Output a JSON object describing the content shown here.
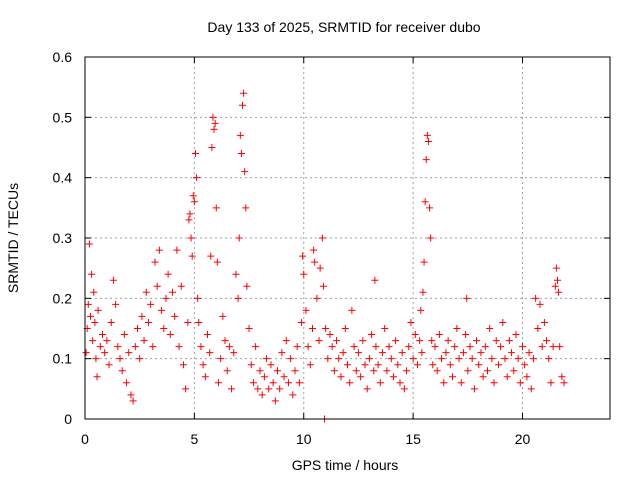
{
  "chart_data": {
    "type": "scatter",
    "title": "Day 133 of 2025, SRMTID for receiver dubo",
    "xlabel": "GPS time / hours",
    "ylabel": "SRMTID / TECUs",
    "xlim": [
      0,
      24
    ],
    "ylim": [
      0,
      0.6
    ],
    "xticks": [
      0,
      5,
      10,
      15,
      20
    ],
    "yticks": [
      0,
      0.1,
      0.2,
      0.3,
      0.4,
      0.5,
      0.6
    ],
    "xtick_labels": [
      "0",
      "5",
      "10",
      "15",
      "20"
    ],
    "ytick_labels": [
      "0",
      "0.1",
      "0.2",
      "0.3",
      "0.4",
      "0.5",
      "0.6"
    ],
    "grid": true,
    "marker": "+",
    "series": [
      {
        "name": "SRMTID",
        "color": "#ff0000",
        "points": [
          [
            0.05,
            0.11
          ],
          [
            0.1,
            0.15
          ],
          [
            0.15,
            0.19
          ],
          [
            0.2,
            0.29
          ],
          [
            0.25,
            0.17
          ],
          [
            0.3,
            0.24
          ],
          [
            0.35,
            0.13
          ],
          [
            0.4,
            0.21
          ],
          [
            0.45,
            0.16
          ],
          [
            0.5,
            0.1
          ],
          [
            0.55,
            0.07
          ],
          [
            0.6,
            0.18
          ],
          [
            0.7,
            0.12
          ],
          [
            0.8,
            0.14
          ],
          [
            0.9,
            0.11
          ],
          [
            1.0,
            0.13
          ],
          [
            1.1,
            0.09
          ],
          [
            1.2,
            0.16
          ],
          [
            1.3,
            0.23
          ],
          [
            1.4,
            0.19
          ],
          [
            1.5,
            0.12
          ],
          [
            1.6,
            0.1
          ],
          [
            1.7,
            0.08
          ],
          [
            1.8,
            0.14
          ],
          [
            1.9,
            0.06
          ],
          [
            2.0,
            0.11
          ],
          [
            2.1,
            0.04
          ],
          [
            2.2,
            0.03
          ],
          [
            2.3,
            0.12
          ],
          [
            2.4,
            0.15
          ],
          [
            2.5,
            0.1
          ],
          [
            2.6,
            0.17
          ],
          [
            2.7,
            0.13
          ],
          [
            2.8,
            0.21
          ],
          [
            2.9,
            0.16
          ],
          [
            3.0,
            0.19
          ],
          [
            3.1,
            0.12
          ],
          [
            3.2,
            0.26
          ],
          [
            3.3,
            0.22
          ],
          [
            3.4,
            0.28
          ],
          [
            3.5,
            0.18
          ],
          [
            3.6,
            0.15
          ],
          [
            3.7,
            0.2
          ],
          [
            3.8,
            0.24
          ],
          [
            3.9,
            0.14
          ],
          [
            4.0,
            0.21
          ],
          [
            4.1,
            0.17
          ],
          [
            4.2,
            0.28
          ],
          [
            4.3,
            0.12
          ],
          [
            4.4,
            0.22
          ],
          [
            4.5,
            0.09
          ],
          [
            4.6,
            0.05
          ],
          [
            4.7,
            0.16
          ],
          [
            4.75,
            0.33
          ],
          [
            4.8,
            0.34
          ],
          [
            4.85,
            0.3
          ],
          [
            4.9,
            0.27
          ],
          [
            4.95,
            0.37
          ],
          [
            5.0,
            0.36
          ],
          [
            5.05,
            0.44
          ],
          [
            5.1,
            0.4
          ],
          [
            5.15,
            0.2
          ],
          [
            5.2,
            0.16
          ],
          [
            5.3,
            0.12
          ],
          [
            5.4,
            0.09
          ],
          [
            5.5,
            0.07
          ],
          [
            5.6,
            0.14
          ],
          [
            5.7,
            0.11
          ],
          [
            5.75,
            0.27
          ],
          [
            5.8,
            0.45
          ],
          [
            5.85,
            0.5
          ],
          [
            5.9,
            0.48
          ],
          [
            5.95,
            0.49
          ],
          [
            6.0,
            0.35
          ],
          [
            6.05,
            0.26
          ],
          [
            6.1,
            0.06
          ],
          [
            6.2,
            0.1
          ],
          [
            6.3,
            0.17
          ],
          [
            6.4,
            0.13
          ],
          [
            6.5,
            0.08
          ],
          [
            6.6,
            0.12
          ],
          [
            6.7,
            0.05
          ],
          [
            6.8,
            0.11
          ],
          [
            6.9,
            0.24
          ],
          [
            7.0,
            0.2
          ],
          [
            7.05,
            0.3
          ],
          [
            7.1,
            0.47
          ],
          [
            7.15,
            0.44
          ],
          [
            7.2,
            0.52
          ],
          [
            7.25,
            0.54
          ],
          [
            7.3,
            0.41
          ],
          [
            7.35,
            0.35
          ],
          [
            7.4,
            0.22
          ],
          [
            7.5,
            0.15
          ],
          [
            7.6,
            0.09
          ],
          [
            7.7,
            0.06
          ],
          [
            7.8,
            0.12
          ],
          [
            7.9,
            0.05
          ],
          [
            8.0,
            0.08
          ],
          [
            8.1,
            0.04
          ],
          [
            8.2,
            0.07
          ],
          [
            8.3,
            0.1
          ],
          [
            8.4,
            0.05
          ],
          [
            8.5,
            0.09
          ],
          [
            8.6,
            0.06
          ],
          [
            8.7,
            0.03
          ],
          [
            8.8,
            0.08
          ],
          [
            8.9,
            0.05
          ],
          [
            9.0,
            0.11
          ],
          [
            9.1,
            0.07
          ],
          [
            9.2,
            0.13
          ],
          [
            9.3,
            0.06
          ],
          [
            9.4,
            0.1
          ],
          [
            9.5,
            0.04
          ],
          [
            9.6,
            0.08
          ],
          [
            9.7,
            0.12
          ],
          [
            9.8,
            0.06
          ],
          [
            9.9,
            0.16
          ],
          [
            9.95,
            0.27
          ],
          [
            10.0,
            0.24
          ],
          [
            10.1,
            0.18
          ],
          [
            10.2,
            0.12
          ],
          [
            10.3,
            0.09
          ],
          [
            10.4,
            0.15
          ],
          [
            10.45,
            0.28
          ],
          [
            10.5,
            0.26
          ],
          [
            10.6,
            0.2
          ],
          [
            10.7,
            0.13
          ],
          [
            10.75,
            0.25
          ],
          [
            10.85,
            0.3
          ],
          [
            10.9,
            0.22
          ],
          [
            10.95,
            0.0
          ],
          [
            11.0,
            0.15
          ],
          [
            11.1,
            0.1
          ],
          [
            11.2,
            0.14
          ],
          [
            11.3,
            0.12
          ],
          [
            11.4,
            0.08
          ],
          [
            11.5,
            0.13
          ],
          [
            11.6,
            0.1
          ],
          [
            11.7,
            0.07
          ],
          [
            11.8,
            0.11
          ],
          [
            11.9,
            0.15
          ],
          [
            12.0,
            0.09
          ],
          [
            12.1,
            0.06
          ],
          [
            12.2,
            0.18
          ],
          [
            12.3,
            0.12
          ],
          [
            12.4,
            0.08
          ],
          [
            12.5,
            0.11
          ],
          [
            12.6,
            0.07
          ],
          [
            12.7,
            0.13
          ],
          [
            12.8,
            0.09
          ],
          [
            12.9,
            0.05
          ],
          [
            13.0,
            0.1
          ],
          [
            13.1,
            0.14
          ],
          [
            13.2,
            0.08
          ],
          [
            13.25,
            0.23
          ],
          [
            13.3,
            0.12
          ],
          [
            13.4,
            0.09
          ],
          [
            13.5,
            0.06
          ],
          [
            13.6,
            0.11
          ],
          [
            13.7,
            0.15
          ],
          [
            13.8,
            0.08
          ],
          [
            13.9,
            0.12
          ],
          [
            14.0,
            0.1
          ],
          [
            14.1,
            0.07
          ],
          [
            14.2,
            0.13
          ],
          [
            14.3,
            0.09
          ],
          [
            14.4,
            0.06
          ],
          [
            14.5,
            0.11
          ],
          [
            14.6,
            0.05
          ],
          [
            14.7,
            0.08
          ],
          [
            14.8,
            0.12
          ],
          [
            14.9,
            0.16
          ],
          [
            15.0,
            0.1
          ],
          [
            15.1,
            0.14
          ],
          [
            15.2,
            0.09
          ],
          [
            15.3,
            0.13
          ],
          [
            15.35,
            0.18
          ],
          [
            15.4,
            0.11
          ],
          [
            15.45,
            0.21
          ],
          [
            15.5,
            0.26
          ],
          [
            15.55,
            0.36
          ],
          [
            15.6,
            0.43
          ],
          [
            15.65,
            0.47
          ],
          [
            15.7,
            0.46
          ],
          [
            15.75,
            0.35
          ],
          [
            15.8,
            0.3
          ],
          [
            15.85,
            0.13
          ],
          [
            15.9,
            0.09
          ],
          [
            16.0,
            0.12
          ],
          [
            16.1,
            0.08
          ],
          [
            16.2,
            0.14
          ],
          [
            16.3,
            0.1
          ],
          [
            16.4,
            0.06
          ],
          [
            16.5,
            0.11
          ],
          [
            16.6,
            0.13
          ],
          [
            16.7,
            0.09
          ],
          [
            16.8,
            0.07
          ],
          [
            16.9,
            0.12
          ],
          [
            17.0,
            0.15
          ],
          [
            17.1,
            0.1
          ],
          [
            17.2,
            0.06
          ],
          [
            17.3,
            0.11
          ],
          [
            17.4,
            0.14
          ],
          [
            17.45,
            0.2
          ],
          [
            17.5,
            0.08
          ],
          [
            17.6,
            0.12
          ],
          [
            17.7,
            0.1
          ],
          [
            17.8,
            0.05
          ],
          [
            17.9,
            0.13
          ],
          [
            18.0,
            0.09
          ],
          [
            18.1,
            0.11
          ],
          [
            18.2,
            0.07
          ],
          [
            18.3,
            0.12
          ],
          [
            18.4,
            0.08
          ],
          [
            18.5,
            0.15
          ],
          [
            18.6,
            0.1
          ],
          [
            18.7,
            0.06
          ],
          [
            18.8,
            0.13
          ],
          [
            18.9,
            0.09
          ],
          [
            19.0,
            0.12
          ],
          [
            19.1,
            0.16
          ],
          [
            19.2,
            0.1
          ],
          [
            19.3,
            0.07
          ],
          [
            19.4,
            0.13
          ],
          [
            19.5,
            0.11
          ],
          [
            19.6,
            0.08
          ],
          [
            19.7,
            0.14
          ],
          [
            19.8,
            0.1
          ],
          [
            19.9,
            0.06
          ],
          [
            20.0,
            0.12
          ],
          [
            20.1,
            0.09
          ],
          [
            20.2,
            0.07
          ],
          [
            20.3,
            0.11
          ],
          [
            20.4,
            0.05
          ],
          [
            20.5,
            0.1
          ],
          [
            20.6,
            0.2
          ],
          [
            20.7,
            0.15
          ],
          [
            20.8,
            0.19
          ],
          [
            20.9,
            0.12
          ],
          [
            21.0,
            0.16
          ],
          [
            21.1,
            0.13
          ],
          [
            21.2,
            0.1
          ],
          [
            21.3,
            0.06
          ],
          [
            21.4,
            0.12
          ],
          [
            21.5,
            0.22
          ],
          [
            21.55,
            0.25
          ],
          [
            21.6,
            0.23
          ],
          [
            21.65,
            0.21
          ],
          [
            21.7,
            0.12
          ],
          [
            21.8,
            0.07
          ],
          [
            21.9,
            0.06
          ]
        ]
      }
    ]
  }
}
